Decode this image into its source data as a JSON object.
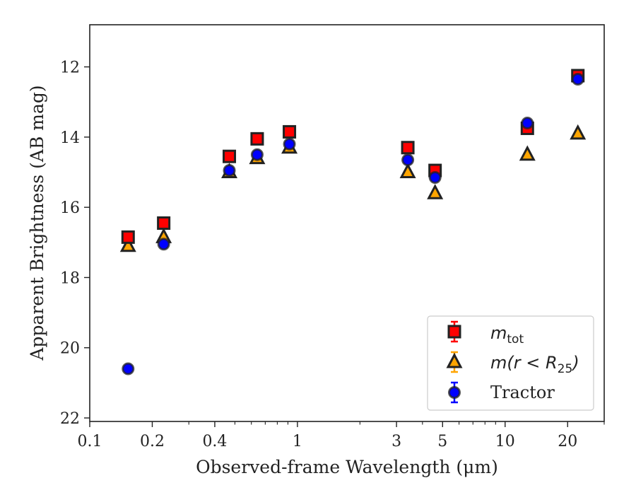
{
  "chart_data": {
    "type": "scatter",
    "xlabel": "Observed-frame Wavelength (μm)",
    "ylabel": "Apparent Brightness (AB mag)",
    "xscale": "log",
    "xlim": [
      0.1,
      30
    ],
    "ylim": [
      22.1,
      10.8
    ],
    "y_inverted": true,
    "x_ticks": [
      0.1,
      0.2,
      0.4,
      1,
      3,
      5,
      10,
      20
    ],
    "x_tick_labels": [
      "0.1",
      "0.2",
      "0.4",
      "1",
      "3",
      "5",
      "10",
      "20"
    ],
    "y_ticks": [
      12,
      14,
      16,
      18,
      20,
      22
    ],
    "y_tick_labels": [
      "12",
      "14",
      "16",
      "18",
      "20",
      "22"
    ],
    "grid": false,
    "legend_position": "lower-right",
    "series": [
      {
        "name": "m_tot",
        "marker": "square",
        "face_color": "#ff0000",
        "error_color": "#ff0000",
        "x": [
          0.153,
          0.227,
          0.47,
          0.64,
          0.915,
          3.4,
          4.6,
          12.8,
          22.4
        ],
        "y": [
          16.85,
          16.45,
          14.55,
          14.05,
          13.85,
          14.3,
          14.95,
          13.75,
          12.25
        ]
      },
      {
        "name": "m(r<R25)",
        "marker": "triangle",
        "face_color": "#ffa500",
        "error_color": "#ffa500",
        "x": [
          0.153,
          0.227,
          0.47,
          0.64,
          0.915,
          3.4,
          4.6,
          12.8,
          22.4
        ],
        "y": [
          17.1,
          16.85,
          15.0,
          14.6,
          14.3,
          15.0,
          15.6,
          14.5,
          13.9
        ]
      },
      {
        "name": "Tractor",
        "marker": "circle",
        "face_color": "#0000ff",
        "error_color": "#0000ff",
        "x": [
          0.153,
          0.227,
          0.47,
          0.64,
          0.915,
          3.4,
          4.6,
          12.8,
          22.4
        ],
        "y": [
          20.6,
          17.05,
          14.95,
          14.5,
          14.2,
          14.65,
          15.15,
          13.6,
          12.35
        ]
      }
    ]
  },
  "legend": {
    "mtot_main": "m",
    "mtot_sub": "tot",
    "mr_main": "m",
    "mr_mid": "(r < R",
    "mr_sub": "25",
    "mr_end": ")",
    "tractor": "Tractor"
  }
}
